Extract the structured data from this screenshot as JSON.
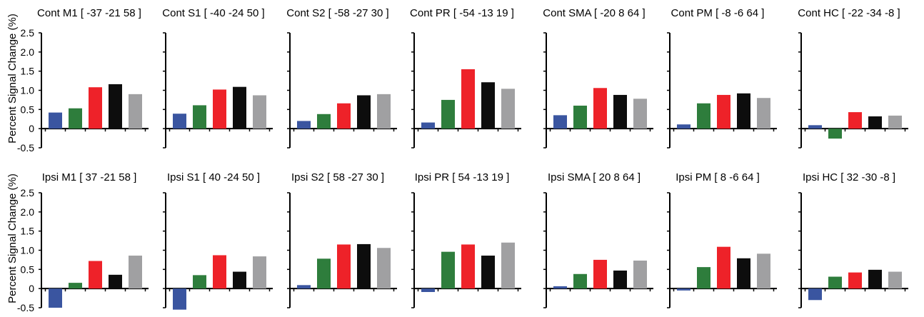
{
  "figure": {
    "ylabel": "Percent Signal Change (%)",
    "condition_colors": [
      "#3a55a0",
      "#2e7d3c",
      "#ee2229",
      "#0d0d0d",
      "#a0a0a2"
    ]
  },
  "chart_data": [
    {
      "type": "bar",
      "title": "Cont  M1 [ -37 -21 58 ]",
      "values": [
        0.42,
        0.53,
        1.08,
        1.16,
        0.9
      ],
      "ylim": [
        -0.5,
        2.5
      ],
      "yticks": [
        "2.5",
        "2.0",
        "1.5",
        "1.0",
        "0.5",
        "0",
        "-0.5"
      ]
    },
    {
      "type": "bar",
      "title": "Cont  S1 [ -40 -24 50 ]",
      "values": [
        0.39,
        0.61,
        1.02,
        1.09,
        0.87
      ],
      "ylim": [
        -0.5,
        2.5
      ]
    },
    {
      "type": "bar",
      "title": "Cont  S2 [ -58 -27 30 ]",
      "values": [
        0.2,
        0.38,
        0.66,
        0.87,
        0.9
      ],
      "ylim": [
        -0.5,
        2.5
      ]
    },
    {
      "type": "bar",
      "title": "Cont  PR [ -54 -13 19 ]",
      "values": [
        0.16,
        0.75,
        1.55,
        1.21,
        1.04
      ],
      "ylim": [
        -0.5,
        2.5
      ]
    },
    {
      "type": "bar",
      "title": "Cont SMA [ -20 8 64 ]",
      "values": [
        0.35,
        0.6,
        1.06,
        0.88,
        0.78
      ],
      "ylim": [
        -0.5,
        2.5
      ]
    },
    {
      "type": "bar",
      "title": "Cont PM [ -8 -6 64 ]",
      "values": [
        0.11,
        0.66,
        0.88,
        0.92,
        0.8
      ],
      "ylim": [
        -0.5,
        2.5
      ]
    },
    {
      "type": "bar",
      "title": "Cont HC [ -22 -34 -8 ]",
      "values": [
        0.09,
        -0.26,
        0.43,
        0.32,
        0.34
      ],
      "ylim": [
        -0.5,
        2.5
      ]
    },
    {
      "type": "bar",
      "title": "Ipsi M1 [ 37 -21 58 ]",
      "values": [
        -0.5,
        0.15,
        0.72,
        0.36,
        0.86
      ],
      "ylim": [
        -0.5,
        2.5
      ],
      "yticks": [
        "2.5",
        "2.0",
        "1.5",
        "1.0",
        "0.5",
        "0",
        "-0.5"
      ]
    },
    {
      "type": "bar",
      "title": "Ipsi  S1 [ 40 -24 50 ]",
      "values": [
        -0.55,
        0.35,
        0.87,
        0.44,
        0.84
      ],
      "ylim": [
        -0.5,
        2.5
      ]
    },
    {
      "type": "bar",
      "title": "Ipsi  S2 [ 58 -27 30 ]",
      "values": [
        0.09,
        0.78,
        1.15,
        1.16,
        1.06
      ],
      "ylim": [
        -0.5,
        2.5
      ]
    },
    {
      "type": "bar",
      "title": "Ipsi  PR [ 54 -13 19 ]",
      "values": [
        -0.09,
        0.96,
        1.15,
        0.86,
        1.2
      ],
      "ylim": [
        -0.5,
        2.5
      ]
    },
    {
      "type": "bar",
      "title": "Ipsi SMA [ 20 8 64 ]",
      "values": [
        0.06,
        0.38,
        0.75,
        0.47,
        0.73
      ],
      "ylim": [
        -0.5,
        2.5
      ]
    },
    {
      "type": "bar",
      "title": "Ipsi PM [ 8 -6 64 ]",
      "values": [
        -0.05,
        0.56,
        1.09,
        0.79,
        0.91
      ],
      "ylim": [
        -0.5,
        2.5
      ]
    },
    {
      "type": "bar",
      "title": "Ipsi HC [ 32 -30 -8 ]",
      "values": [
        -0.3,
        0.31,
        0.42,
        0.49,
        0.44
      ],
      "ylim": [
        -0.5,
        2.5
      ]
    }
  ]
}
